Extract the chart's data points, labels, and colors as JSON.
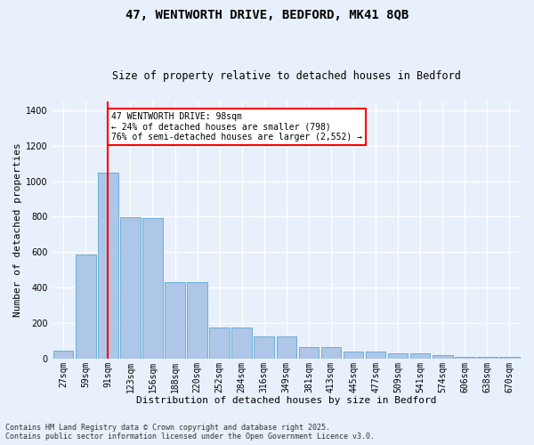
{
  "title": "47, WENTWORTH DRIVE, BEDFORD, MK41 8QB",
  "subtitle": "Size of property relative to detached houses in Bedford",
  "xlabel": "Distribution of detached houses by size in Bedford",
  "ylabel": "Number of detached properties",
  "categories": [
    "27sqm",
    "59sqm",
    "91sqm",
    "123sqm",
    "156sqm",
    "188sqm",
    "220sqm",
    "252sqm",
    "284sqm",
    "316sqm",
    "349sqm",
    "381sqm",
    "413sqm",
    "445sqm",
    "477sqm",
    "509sqm",
    "541sqm",
    "574sqm",
    "606sqm",
    "638sqm",
    "670sqm"
  ],
  "bar_heights": [
    45,
    585,
    1050,
    795,
    790,
    430,
    430,
    175,
    175,
    125,
    125,
    65,
    65,
    40,
    40,
    28,
    28,
    20,
    10,
    10,
    10
  ],
  "bar_color": "#aec6e8",
  "bar_edgecolor": "#6aaed6",
  "background_color": "#e8f0fb",
  "grid_color": "#ffffff",
  "vline_color": "red",
  "vline_pos": 2.0,
  "annotation_text": "47 WENTWORTH DRIVE: 98sqm\n← 24% of detached houses are smaller (798)\n76% of semi-detached houses are larger (2,552) →",
  "annotation_box_color": "white",
  "annotation_box_edgecolor": "red",
  "footer": "Contains HM Land Registry data © Crown copyright and database right 2025.\nContains public sector information licensed under the Open Government Licence v3.0.",
  "ylim": [
    0,
    1450
  ],
  "figsize": [
    6.0,
    5.0
  ],
  "dpi": 100,
  "title_fontsize": 10,
  "subtitle_fontsize": 8.5,
  "label_fontsize": 8,
  "tick_fontsize": 7,
  "annot_fontsize": 7,
  "footer_fontsize": 6
}
